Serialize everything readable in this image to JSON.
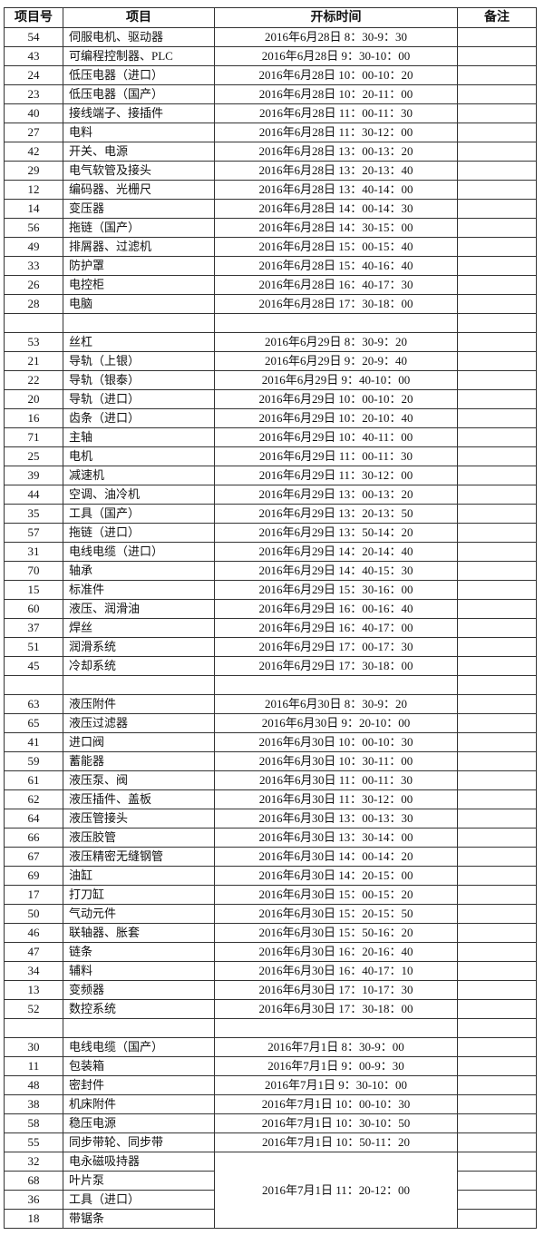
{
  "headers": [
    "项目号",
    "项目",
    "开标时间",
    "备注"
  ],
  "days": [
    {
      "rows": [
        [
          "54",
          "伺服电机、驱动器",
          "2016年6月28日 8：30-9：30"
        ],
        [
          "43",
          "可编程控制器、PLC",
          "2016年6月28日 9：30-10：00"
        ],
        [
          "24",
          "低压电器（进口）",
          "2016年6月28日 10：00-10：20"
        ],
        [
          "23",
          "低压电器（国产）",
          "2016年6月28日 10：20-11：00"
        ],
        [
          "40",
          "接线端子、接插件",
          "2016年6月28日 11：00-11：30"
        ],
        [
          "27",
          "电料",
          "2016年6月28日 11：30-12：00"
        ],
        [
          "42",
          "开关、电源",
          "2016年6月28日 13：00-13：20"
        ],
        [
          "29",
          "电气软管及接头",
          "2016年6月28日 13：20-13：40"
        ],
        [
          "12",
          "编码器、光栅尺",
          "2016年6月28日 13：40-14：00"
        ],
        [
          "14",
          "变压器",
          "2016年6月28日 14：00-14：30"
        ],
        [
          "56",
          "拖链（国产）",
          "2016年6月28日 14：30-15：00"
        ],
        [
          "49",
          "排屑器、过滤机",
          "2016年6月28日 15：00-15：40"
        ],
        [
          "33",
          "防护罩",
          "2016年6月28日 15：40-16：40"
        ],
        [
          "26",
          "电控柜",
          "2016年6月28日 16：40-17：30"
        ],
        [
          "28",
          "电脑",
          "2016年6月28日 17：30-18：00"
        ]
      ]
    },
    {
      "rows": [
        [
          "53",
          "丝杠",
          "2016年6月29日 8：30-9：20"
        ],
        [
          "21",
          "导轨（上银）",
          "2016年6月29日 9：20-9：40"
        ],
        [
          "22",
          "导轨（银泰）",
          "2016年6月29日 9：40-10：00"
        ],
        [
          "20",
          "导轨（进口）",
          "2016年6月29日 10：00-10：20"
        ],
        [
          "16",
          "齿条（进口）",
          "2016年6月29日 10：20-10：40"
        ],
        [
          "71",
          "主轴",
          "2016年6月29日 10：40-11：00"
        ],
        [
          "25",
          "电机",
          "2016年6月29日 11：00-11：30"
        ],
        [
          "39",
          "减速机",
          "2016年6月29日 11：30-12：00"
        ],
        [
          "44",
          "空调、油冷机",
          "2016年6月29日 13：00-13：20"
        ],
        [
          "35",
          "工具（国产）",
          "2016年6月29日 13：20-13：50"
        ],
        [
          "57",
          "拖链（进口）",
          "2016年6月29日 13：50-14：20"
        ],
        [
          "31",
          "电线电缆（进口）",
          "2016年6月29日 14：20-14：40"
        ],
        [
          "70",
          "轴承",
          "2016年6月29日 14：40-15：30"
        ],
        [
          "15",
          "标准件",
          "2016年6月29日 15：30-16：00"
        ],
        [
          "60",
          "液压、润滑油",
          "2016年6月29日 16：00-16：40"
        ],
        [
          "37",
          "焊丝",
          "2016年6月29日 16：40-17：00"
        ],
        [
          "51",
          "润滑系统",
          "2016年6月29日 17：00-17：30"
        ],
        [
          "45",
          "冷却系统",
          "2016年6月29日 17：30-18：00"
        ]
      ]
    },
    {
      "rows": [
        [
          "63",
          "液压附件",
          "2016年6月30日 8：30-9：20"
        ],
        [
          "65",
          "液压过滤器",
          "2016年6月30日 9：20-10：00"
        ],
        [
          "41",
          "进口阀",
          "2016年6月30日 10：00-10：30"
        ],
        [
          "59",
          "蓄能器",
          "2016年6月30日 10：30-11：00"
        ],
        [
          "61",
          "液压泵、阀",
          "2016年6月30日 11：00-11：30"
        ],
        [
          "62",
          "液压插件、盖板",
          "2016年6月30日 11：30-12：00"
        ],
        [
          "64",
          "液压管接头",
          "2016年6月30日 13：00-13：30"
        ],
        [
          "66",
          "液压胶管",
          "2016年6月30日 13：30-14：00"
        ],
        [
          "67",
          "液压精密无缝钢管",
          "2016年6月30日 14：00-14：20"
        ],
        [
          "69",
          "油缸",
          "2016年6月30日 14：20-15：00"
        ],
        [
          "17",
          "打刀缸",
          "2016年6月30日 15：00-15：20"
        ],
        [
          "50",
          "气动元件",
          "2016年6月30日 15：20-15：50"
        ],
        [
          "46",
          "联轴器、胀套",
          "2016年6月30日 15：50-16：20"
        ],
        [
          "47",
          "链条",
          "2016年6月30日 16：20-16：40"
        ],
        [
          "34",
          "辅料",
          "2016年6月30日 16：40-17：10"
        ],
        [
          "13",
          "变频器",
          "2016年6月30日 17：10-17：30"
        ],
        [
          "52",
          "数控系统",
          "2016年6月30日 17：30-18：00"
        ]
      ]
    },
    {
      "rows": [
        [
          "30",
          "电线电缆（国产）",
          "2016年7月1日 8：30-9：00"
        ],
        [
          "11",
          "包装箱",
          "2016年7月1日 9：00-9：30"
        ],
        [
          "48",
          "密封件",
          "2016年7月1日 9：30-10：00"
        ],
        [
          "38",
          "机床附件",
          "2016年7月1日 10：00-10：30"
        ],
        [
          "58",
          "稳压电源",
          "2016年7月1日 10：30-10：50"
        ],
        [
          "55",
          "同步带轮、同步带",
          "2016年7月1日 10：50-11：20"
        ]
      ],
      "merged_group": {
        "time": "2016年7月1日 11：20-12：00",
        "rows": [
          [
            "32",
            "电永磁吸持器"
          ],
          [
            "68",
            "叶片泵"
          ],
          [
            "36",
            "工具（进口）"
          ],
          [
            "18",
            "带锯条"
          ]
        ]
      }
    }
  ]
}
